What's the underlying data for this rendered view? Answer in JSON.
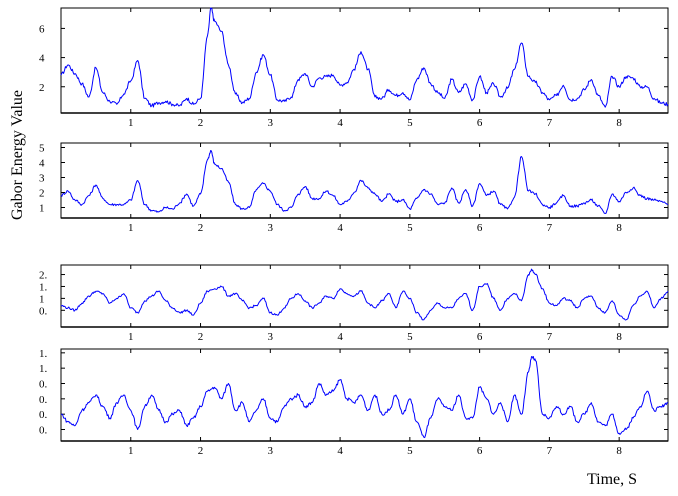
{
  "ylabel": "Gabor Energy Value",
  "xlabel": "Time, S",
  "colors": {
    "line": "#0000ff",
    "axis": "#000000",
    "background": "#ffffff"
  },
  "chart_data": [
    {
      "type": "line",
      "xlim": [
        0,
        8.7
      ],
      "ylim": [
        0.2,
        7.4
      ],
      "xticks": [
        "1",
        "2",
        "3",
        "4",
        "5",
        "6",
        "7",
        "8"
      ],
      "xtick_values": [
        1,
        2,
        3,
        4,
        5,
        6,
        7,
        8
      ],
      "yticks": [
        "2",
        "4",
        "6"
      ],
      "ytick_values": [
        2,
        4,
        6
      ],
      "series": [
        {
          "x": [
            0,
            0.1,
            0.2,
            0.3,
            0.4,
            0.5,
            0.6,
            0.7,
            0.8,
            0.9,
            1.0,
            1.1,
            1.2,
            1.3,
            1.4,
            1.5,
            1.6,
            1.7,
            1.8,
            1.9,
            2.0,
            2.1,
            2.15,
            2.2,
            2.3,
            2.4,
            2.5,
            2.6,
            2.7,
            2.8,
            2.9,
            3.0,
            3.1,
            3.2,
            3.3,
            3.4,
            3.5,
            3.6,
            3.7,
            3.8,
            3.9,
            4.0,
            4.1,
            4.2,
            4.3,
            4.4,
            4.5,
            4.6,
            4.7,
            4.8,
            4.9,
            5.0,
            5.1,
            5.2,
            5.3,
            5.4,
            5.5,
            5.6,
            5.7,
            5.8,
            5.9,
            6.0,
            6.1,
            6.2,
            6.3,
            6.4,
            6.5,
            6.6,
            6.7,
            6.8,
            6.9,
            7.0,
            7.1,
            7.2,
            7.3,
            7.4,
            7.5,
            7.6,
            7.7,
            7.8,
            7.9,
            8.0,
            8.1,
            8.2,
            8.3,
            8.4,
            8.5,
            8.6,
            8.7
          ],
          "y": [
            2.8,
            3.5,
            2.9,
            2.2,
            1.3,
            3.3,
            1.6,
            1.0,
            0.8,
            1.5,
            2.4,
            3.8,
            1.2,
            0.7,
            0.9,
            1.0,
            0.8,
            0.7,
            1.2,
            0.8,
            1.2,
            5.5,
            7.4,
            6.5,
            5.8,
            3.5,
            1.5,
            0.9,
            1.2,
            3.0,
            4.2,
            2.8,
            1.1,
            1.0,
            1.3,
            2.5,
            2.9,
            2.0,
            2.6,
            2.7,
            2.8,
            2.1,
            2.3,
            3.2,
            4.4,
            3.2,
            1.3,
            1.2,
            1.8,
            1.4,
            1.6,
            1.1,
            2.5,
            3.3,
            2.2,
            1.6,
            1.2,
            2.5,
            1.6,
            2.2,
            1.1,
            2.7,
            1.6,
            2.2,
            1.3,
            1.9,
            3.2,
            5.0,
            2.7,
            2.3,
            1.6,
            1.1,
            1.4,
            2.1,
            1.1,
            1.2,
            1.8,
            2.5,
            1.4,
            0.6,
            2.7,
            2.0,
            2.7,
            2.6,
            2.0,
            2.0,
            1.2,
            0.9,
            0.8
          ]
        }
      ]
    },
    {
      "type": "line",
      "xlim": [
        0,
        8.7
      ],
      "ylim": [
        0.3,
        5.3
      ],
      "xticks": [
        "1",
        "2",
        "3",
        "4",
        "5",
        "6",
        "7",
        "8"
      ],
      "xtick_values": [
        1,
        2,
        3,
        4,
        5,
        6,
        7,
        8
      ],
      "yticks": [
        "1",
        "2",
        "3",
        "4",
        "5"
      ],
      "ytick_values": [
        1,
        2,
        3,
        4,
        5
      ],
      "series": [
        {
          "x": [
            0,
            0.1,
            0.2,
            0.3,
            0.4,
            0.5,
            0.6,
            0.7,
            0.8,
            0.9,
            1.0,
            1.1,
            1.2,
            1.3,
            1.4,
            1.5,
            1.6,
            1.7,
            1.8,
            1.9,
            2.0,
            2.1,
            2.15,
            2.2,
            2.3,
            2.4,
            2.5,
            2.6,
            2.7,
            2.8,
            2.9,
            3.0,
            3.1,
            3.2,
            3.3,
            3.4,
            3.5,
            3.6,
            3.7,
            3.8,
            3.9,
            4.0,
            4.1,
            4.2,
            4.3,
            4.4,
            4.5,
            4.6,
            4.7,
            4.8,
            4.9,
            5.0,
            5.1,
            5.2,
            5.3,
            5.4,
            5.5,
            5.6,
            5.7,
            5.8,
            5.9,
            6.0,
            6.1,
            6.2,
            6.3,
            6.4,
            6.5,
            6.6,
            6.7,
            6.8,
            6.9,
            7.0,
            7.1,
            7.2,
            7.3,
            7.4,
            7.5,
            7.6,
            7.7,
            7.8,
            7.9,
            8.0,
            8.1,
            8.2,
            8.3,
            8.4,
            8.5,
            8.6,
            8.7
          ],
          "y": [
            1.8,
            2.1,
            1.5,
            1.2,
            1.8,
            2.5,
            1.6,
            1.2,
            1.2,
            1.2,
            1.5,
            2.8,
            1.2,
            0.8,
            0.7,
            1.0,
            0.9,
            1.3,
            1.9,
            1.1,
            1.9,
            4.2,
            4.8,
            3.9,
            3.6,
            2.7,
            1.2,
            0.9,
            1.0,
            2.2,
            2.6,
            2.1,
            1.2,
            0.8,
            1.0,
            1.9,
            2.4,
            1.6,
            1.6,
            2.1,
            1.8,
            1.2,
            1.4,
            2.0,
            2.8,
            2.3,
            1.9,
            1.4,
            1.9,
            1.4,
            1.5,
            0.9,
            1.6,
            2.2,
            1.9,
            1.2,
            1.3,
            2.3,
            1.3,
            2.2,
            1.1,
            2.6,
            1.8,
            2.1,
            1.2,
            0.9,
            1.7,
            4.4,
            2.1,
            1.9,
            1.2,
            1.0,
            1.3,
            1.8,
            1.1,
            1.1,
            1.3,
            1.5,
            1.1,
            0.6,
            1.9,
            1.4,
            2.0,
            2.3,
            1.8,
            1.6,
            1.5,
            1.4,
            1.2
          ]
        }
      ]
    },
    {
      "type": "line",
      "xlim": [
        0,
        8.7
      ],
      "ylim": [
        -0.2,
        2.4
      ],
      "xticks": [
        "1",
        "2",
        "3",
        "4",
        "5",
        "6",
        "7",
        "8"
      ],
      "xtick_values": [
        1,
        2,
        3,
        4,
        5,
        6,
        7,
        8
      ],
      "yticks": [
        "0.",
        "1",
        "1.",
        "2."
      ],
      "ytick_values": [
        0.5,
        1.0,
        1.5,
        2.0
      ],
      "series": [
        {
          "x": [
            0,
            0.1,
            0.2,
            0.3,
            0.4,
            0.5,
            0.6,
            0.7,
            0.8,
            0.9,
            1.0,
            1.1,
            1.2,
            1.3,
            1.4,
            1.5,
            1.6,
            1.7,
            1.8,
            1.9,
            2.0,
            2.1,
            2.2,
            2.3,
            2.4,
            2.5,
            2.6,
            2.7,
            2.8,
            2.9,
            3.0,
            3.1,
            3.2,
            3.3,
            3.4,
            3.5,
            3.6,
            3.7,
            3.8,
            3.9,
            4.0,
            4.1,
            4.2,
            4.3,
            4.4,
            4.5,
            4.6,
            4.7,
            4.8,
            4.9,
            5.0,
            5.1,
            5.2,
            5.3,
            5.4,
            5.5,
            5.6,
            5.7,
            5.8,
            5.9,
            6.0,
            6.1,
            6.2,
            6.3,
            6.4,
            6.5,
            6.6,
            6.7,
            6.75,
            6.8,
            6.9,
            7.0,
            7.1,
            7.2,
            7.3,
            7.4,
            7.5,
            7.6,
            7.7,
            7.8,
            7.9,
            8.0,
            8.1,
            8.2,
            8.3,
            8.4,
            8.5,
            8.6,
            8.7
          ],
          "y": [
            0.7,
            0.6,
            0.5,
            0.8,
            1.1,
            1.3,
            1.2,
            0.8,
            1.0,
            1.2,
            0.6,
            0.4,
            0.9,
            1.1,
            1.3,
            0.9,
            0.6,
            0.4,
            0.5,
            0.3,
            0.8,
            1.3,
            1.4,
            1.5,
            1.1,
            1.2,
            0.9,
            0.6,
            0.7,
            1.0,
            0.4,
            0.3,
            0.6,
            1.0,
            1.2,
            0.9,
            0.6,
            0.8,
            1.1,
            1.0,
            1.4,
            1.2,
            1.1,
            1.3,
            0.8,
            0.6,
            0.9,
            1.2,
            0.6,
            1.3,
            1.0,
            0.4,
            0.1,
            0.5,
            0.8,
            0.6,
            0.6,
            1.0,
            1.2,
            0.5,
            1.5,
            1.6,
            1.0,
            0.5,
            1.0,
            1.2,
            0.9,
            2.0,
            2.2,
            2.0,
            1.4,
            0.8,
            0.7,
            1.0,
            0.9,
            0.6,
            1.0,
            1.1,
            0.6,
            0.4,
            0.9,
            0.3,
            0.1,
            0.7,
            1.1,
            1.3,
            0.6,
            1.0,
            1.3
          ]
        }
      ]
    },
    {
      "type": "line",
      "xlim": [
        0,
        8.7
      ],
      "ylim": [
        -0.3,
        2.1
      ],
      "xticks": [
        "1",
        "2",
        "3",
        "4",
        "5",
        "6",
        "7",
        "8"
      ],
      "xtick_values": [
        1,
        2,
        3,
        4,
        5,
        6,
        7,
        8
      ],
      "yticks": [
        "0.",
        "0.",
        "0.",
        "0.",
        "1.",
        "1."
      ],
      "ytick_values": [
        0.0,
        0.4,
        0.8,
        1.2,
        1.6,
        2.0
      ],
      "series": [
        {
          "x": [
            0,
            0.1,
            0.2,
            0.3,
            0.4,
            0.5,
            0.6,
            0.7,
            0.8,
            0.9,
            1.0,
            1.1,
            1.2,
            1.3,
            1.4,
            1.5,
            1.6,
            1.7,
            1.8,
            1.9,
            2.0,
            2.1,
            2.2,
            2.3,
            2.4,
            2.5,
            2.6,
            2.7,
            2.8,
            2.9,
            3.0,
            3.1,
            3.2,
            3.3,
            3.4,
            3.5,
            3.6,
            3.7,
            3.8,
            3.9,
            4.0,
            4.1,
            4.2,
            4.3,
            4.4,
            4.5,
            4.6,
            4.7,
            4.8,
            4.9,
            5.0,
            5.1,
            5.2,
            5.3,
            5.4,
            5.5,
            5.6,
            5.7,
            5.8,
            5.9,
            6.0,
            6.1,
            6.2,
            6.3,
            6.4,
            6.5,
            6.6,
            6.7,
            6.75,
            6.8,
            6.9,
            7.0,
            7.1,
            7.2,
            7.3,
            7.4,
            7.5,
            7.6,
            7.7,
            7.8,
            7.9,
            8.0,
            8.1,
            8.2,
            8.3,
            8.4,
            8.5,
            8.6,
            8.7
          ],
          "y": [
            0.4,
            0.2,
            0.1,
            0.5,
            0.7,
            0.9,
            0.6,
            0.3,
            0.7,
            0.9,
            0.5,
            0.0,
            0.6,
            0.9,
            0.5,
            0.2,
            0.4,
            0.5,
            0.1,
            0.3,
            0.6,
            1.0,
            1.1,
            0.8,
            1.2,
            0.5,
            0.7,
            0.2,
            0.5,
            0.8,
            0.3,
            0.2,
            0.6,
            0.8,
            0.9,
            0.6,
            0.7,
            1.2,
            0.9,
            1.0,
            1.3,
            0.8,
            0.7,
            0.9,
            0.5,
            0.9,
            0.4,
            0.5,
            0.9,
            0.4,
            0.8,
            0.2,
            -0.2,
            0.3,
            0.8,
            0.6,
            0.5,
            0.9,
            0.3,
            0.3,
            1.1,
            0.8,
            0.4,
            0.7,
            0.2,
            0.9,
            0.4,
            1.5,
            1.9,
            1.8,
            0.4,
            0.3,
            0.6,
            0.4,
            0.6,
            0.2,
            0.4,
            0.7,
            0.2,
            0.1,
            0.4,
            -0.1,
            0.0,
            0.3,
            0.6,
            1.0,
            0.5,
            0.6,
            0.7
          ]
        }
      ]
    }
  ]
}
